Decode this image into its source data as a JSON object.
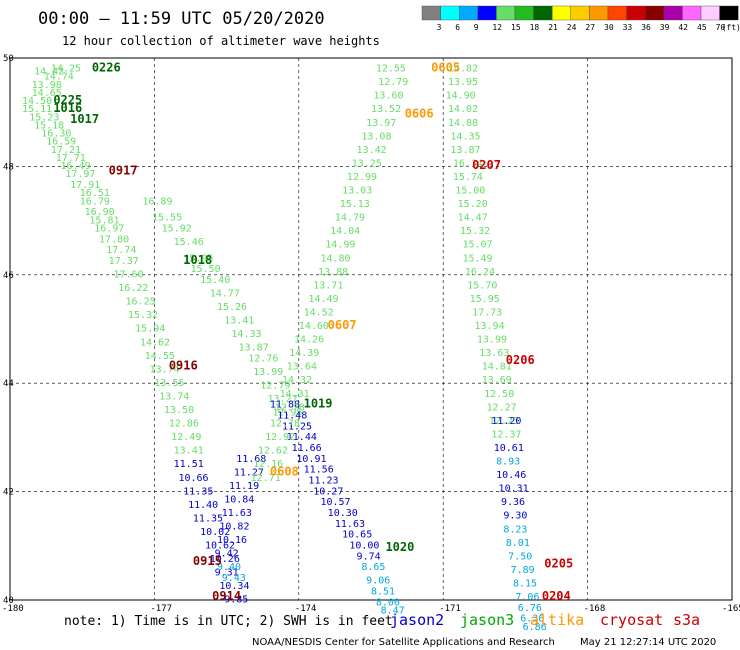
{
  "header": {
    "title": "00:00 – 11:59 UTC 05/20/2020",
    "subtitle": "12 hour collection of altimeter wave heights"
  },
  "legend": {
    "thresholds": [
      "3",
      "6",
      "9",
      "12",
      "15",
      "18",
      "21",
      "24",
      "27",
      "30",
      "33",
      "36",
      "39",
      "42",
      "45",
      "70"
    ],
    "unit": "(ft)",
    "colors": [
      "#808080",
      "#00ffff",
      "#00aaff",
      "#0000ff",
      "#66dd66",
      "#22bb22",
      "#006600",
      "#ffff00",
      "#ffcc00",
      "#ff9900",
      "#ff4400",
      "#cc0000",
      "#880000",
      "#aa00aa",
      "#ff66ff",
      "#ffccff",
      "#000000"
    ]
  },
  "footer": {
    "note": "note: 1) Time is in UTC; 2) SWH is in feet",
    "satellites": [
      {
        "name": "jason2",
        "color": "#0000cc"
      },
      {
        "name": "jason3",
        "color": "#00aa00"
      },
      {
        "name": "altika",
        "color": "#ff9900"
      },
      {
        "name": "cryosat",
        "color": "#cc0000"
      },
      {
        "name": "s3a",
        "color": "#cc0000"
      }
    ],
    "credit": "NOAA/NESDIS Center for Satellite Applications and Research",
    "timestamp": "May 21 12:27:14 UTC 2020"
  },
  "chart_data": {
    "type": "scatter",
    "xlim": [
      -180,
      -165
    ],
    "ylim": [
      40,
      50
    ],
    "xticks": [
      -180,
      -177,
      -174,
      -171,
      -168,
      -165
    ],
    "yticks": [
      40,
      42,
      44,
      46,
      48,
      50
    ],
    "xtick_labels": [
      "-180",
      "-177",
      "-174",
      "-171",
      "-168",
      "-165"
    ],
    "ytick_labels": [
      "40",
      "42",
      "44",
      "46",
      "48",
      "50"
    ],
    "grid": true,
    "time_labels": [
      {
        "text": "0226",
        "lon": -178.3,
        "lat": 49.75,
        "color": "#006600"
      },
      {
        "text": "0225",
        "lon": -179.1,
        "lat": 49.15,
        "color": "#006600"
      },
      {
        "text": "1016",
        "lon": -179.1,
        "lat": 49.0,
        "color": "#006600"
      },
      {
        "text": "1017",
        "lon": -178.75,
        "lat": 48.8,
        "color": "#006600"
      },
      {
        "text": "0917",
        "lon": -177.95,
        "lat": 47.85,
        "color": "#880000"
      },
      {
        "text": "1018",
        "lon": -176.4,
        "lat": 46.2,
        "color": "#006600"
      },
      {
        "text": "0916",
        "lon": -176.7,
        "lat": 44.25,
        "color": "#880000"
      },
      {
        "text": "1019",
        "lon": -173.9,
        "lat": 43.55,
        "color": "#006600"
      },
      {
        "text": "0608",
        "lon": -174.6,
        "lat": 42.3,
        "color": "#ff9900"
      },
      {
        "text": "0915",
        "lon": -176.2,
        "lat": 40.65,
        "color": "#880000"
      },
      {
        "text": "0914",
        "lon": -175.8,
        "lat": 40.0,
        "color": "#880000"
      },
      {
        "text": "1020",
        "lon": -172.2,
        "lat": 40.9,
        "color": "#006600"
      },
      {
        "text": "0605",
        "lon": -171.25,
        "lat": 49.75,
        "color": "#ff9900"
      },
      {
        "text": "0606",
        "lon": -171.8,
        "lat": 48.9,
        "color": "#ff9900"
      },
      {
        "text": "0207",
        "lon": -170.4,
        "lat": 47.95,
        "color": "#cc0000"
      },
      {
        "text": "0607",
        "lon": -173.4,
        "lat": 45.0,
        "color": "#ff9900"
      },
      {
        "text": "0206",
        "lon": -169.7,
        "lat": 44.35,
        "color": "#cc0000"
      },
      {
        "text": "0205",
        "lon": -168.9,
        "lat": 40.6,
        "color": "#cc0000"
      },
      {
        "text": "0204",
        "lon": -168.95,
        "lat": 40.0,
        "color": "#cc0000"
      }
    ],
    "series": [
      {
        "color": "#66dd66",
        "points": [
          [
            -179.15,
            49.75,
            "14.25"
          ],
          [
            -179.5,
            49.7,
            "14.42"
          ],
          [
            -179.3,
            49.6,
            "14.74"
          ],
          [
            -179.55,
            49.45,
            "13.98"
          ],
          [
            -179.55,
            49.3,
            "14.65"
          ],
          [
            -179.75,
            49.15,
            "14.50"
          ],
          [
            -179.75,
            49.0,
            "15.11"
          ],
          [
            -179.6,
            48.85,
            "15.23"
          ],
          [
            -179.5,
            48.7,
            "15.18"
          ],
          [
            -179.35,
            48.55,
            "16.30"
          ],
          [
            -179.25,
            48.4,
            "16.59"
          ],
          [
            -179.15,
            48.25,
            "17.21"
          ],
          [
            -179.05,
            48.1,
            "17.71"
          ],
          [
            -178.95,
            47.95,
            "16.49"
          ],
          [
            -178.85,
            47.8,
            "17.97"
          ],
          [
            -178.75,
            47.6,
            "17.91"
          ],
          [
            -178.55,
            47.45,
            "16.51"
          ],
          [
            -178.55,
            47.3,
            "16.79"
          ],
          [
            -178.45,
            47.1,
            "16.90"
          ],
          [
            -178.35,
            46.95,
            "15.81"
          ],
          [
            -178.25,
            46.8,
            "16.97"
          ],
          [
            -178.15,
            46.6,
            "17.80"
          ],
          [
            -178.0,
            46.4,
            "17.74"
          ],
          [
            -177.95,
            46.2,
            "17.37"
          ],
          [
            -177.85,
            45.95,
            "17.60"
          ],
          [
            -177.75,
            45.7,
            "16.22"
          ],
          [
            -177.6,
            45.45,
            "16.25"
          ],
          [
            -177.55,
            45.2,
            "15.32"
          ],
          [
            -177.4,
            44.95,
            "15.94"
          ],
          [
            -177.3,
            44.7,
            "14.62"
          ],
          [
            -177.2,
            44.45,
            "14.55"
          ],
          [
            -177.1,
            44.2,
            "13.74"
          ],
          [
            -177.0,
            43.95,
            "13.55"
          ],
          [
            -176.9,
            43.7,
            "13.74"
          ],
          [
            -176.8,
            43.45,
            "13.50"
          ],
          [
            -176.7,
            43.2,
            "12.86"
          ],
          [
            -176.65,
            42.95,
            "12.49"
          ],
          [
            -176.6,
            42.7,
            "13.41"
          ]
        ]
      },
      {
        "color": "#66dd66",
        "points": [
          [
            -177.25,
            47.3,
            "16.89"
          ],
          [
            -177.05,
            47.0,
            "15.55"
          ],
          [
            -176.85,
            46.8,
            "15.92"
          ],
          [
            -176.6,
            46.55,
            "15.46"
          ],
          [
            -176.4,
            46.25,
            "15.95"
          ],
          [
            -176.25,
            46.05,
            "15.50"
          ],
          [
            -176.05,
            45.85,
            "15.40"
          ],
          [
            -175.85,
            45.6,
            "14.77"
          ],
          [
            -175.7,
            45.35,
            "15.26"
          ],
          [
            -175.55,
            45.1,
            "13.41"
          ],
          [
            -175.4,
            44.85,
            "14.33"
          ],
          [
            -175.25,
            44.6,
            "13.87"
          ],
          [
            -175.05,
            44.4,
            "12.76"
          ],
          [
            -174.95,
            44.15,
            "13.99"
          ],
          [
            -174.8,
            43.9,
            "12.79"
          ],
          [
            -174.65,
            43.65,
            "13.27"
          ],
          [
            -174.55,
            43.4,
            "12.95"
          ]
        ]
      },
      {
        "color": "#0000cc",
        "points": [
          [
            -176.6,
            42.45,
            "11.51"
          ],
          [
            -176.5,
            42.2,
            "10.66"
          ],
          [
            -176.4,
            41.95,
            "11.35"
          ],
          [
            -176.3,
            41.7,
            "11.40"
          ],
          [
            -176.2,
            41.45,
            "11.35"
          ],
          [
            -176.05,
            41.2,
            "10.02"
          ],
          [
            -175.95,
            40.95,
            "10.62"
          ],
          [
            -175.85,
            40.7,
            "10.26"
          ],
          [
            -175.75,
            40.45,
            "9.31"
          ],
          [
            -175.65,
            40.2,
            "10.34"
          ],
          [
            -175.55,
            39.95,
            "9.85"
          ]
        ]
      },
      {
        "color": "#0000cc",
        "points": [
          [
            -174.6,
            43.55,
            "11.88"
          ],
          [
            -174.45,
            43.35,
            "11.48"
          ],
          [
            -174.35,
            43.15,
            "11.25"
          ],
          [
            -174.25,
            42.95,
            "11.44"
          ],
          [
            -174.15,
            42.75,
            "11.66"
          ],
          [
            -174.05,
            42.55,
            "10.91"
          ],
          [
            -173.9,
            42.35,
            "11.56"
          ],
          [
            -173.8,
            42.15,
            "11.23"
          ],
          [
            -173.7,
            41.95,
            "10.27"
          ],
          [
            -173.55,
            41.75,
            "10.57"
          ],
          [
            -173.4,
            41.55,
            "10.30"
          ],
          [
            -173.25,
            41.35,
            "11.63"
          ],
          [
            -173.1,
            41.15,
            "10.65"
          ],
          [
            -172.95,
            40.95,
            "10.00"
          ],
          [
            -172.8,
            40.75,
            "9.74"
          ]
        ]
      },
      {
        "color": "#0000cc",
        "points": [
          [
            -175.3,
            42.55,
            "11.68"
          ],
          [
            -175.35,
            42.3,
            "11.27"
          ],
          [
            -175.45,
            42.05,
            "11.19"
          ],
          [
            -175.55,
            41.8,
            "10.84"
          ],
          [
            -175.6,
            41.55,
            "11.63"
          ],
          [
            -175.65,
            41.3,
            "10.82"
          ],
          [
            -175.7,
            41.05,
            "10.16"
          ],
          [
            -175.75,
            40.8,
            "9.42"
          ]
        ]
      },
      {
        "color": "#66dd66",
        "points": [
          [
            -174.6,
            43.2,
            "12.78"
          ],
          [
            -174.7,
            42.95,
            "12.92"
          ],
          [
            -174.85,
            42.7,
            "12.62"
          ],
          [
            -174.95,
            42.45,
            "12.16"
          ],
          [
            -175.0,
            42.2,
            "12.71"
          ]
        ]
      },
      {
        "color": "#00aadd",
        "points": [
          [
            -172.7,
            40.55,
            "8.65"
          ],
          [
            -172.6,
            40.3,
            "9.06"
          ],
          [
            -172.5,
            40.1,
            "8.51"
          ],
          [
            -172.4,
            39.9,
            "8.00"
          ],
          [
            -172.3,
            39.75,
            "8.47"
          ],
          [
            -175.7,
            40.55,
            "9.40"
          ],
          [
            -175.6,
            40.35,
            "9.43"
          ]
        ]
      },
      {
        "color": "#66dd66",
        "points": [
          [
            -172.4,
            49.75,
            "12.55"
          ],
          [
            -172.35,
            49.5,
            "12.79"
          ],
          [
            -172.45,
            49.25,
            "13.60"
          ],
          [
            -172.5,
            49.0,
            "13.52"
          ],
          [
            -172.6,
            48.75,
            "13.97"
          ],
          [
            -172.7,
            48.5,
            "13.08"
          ],
          [
            -172.8,
            48.25,
            "13.42"
          ],
          [
            -172.9,
            48.0,
            "13.25"
          ],
          [
            -173.0,
            47.75,
            "12.99"
          ],
          [
            -173.1,
            47.5,
            "13.03"
          ],
          [
            -173.15,
            47.25,
            "15.13"
          ],
          [
            -173.25,
            47.0,
            "14.79"
          ],
          [
            -173.35,
            46.75,
            "14.04"
          ],
          [
            -173.45,
            46.5,
            "14.99"
          ],
          [
            -173.55,
            46.25,
            "14.80"
          ],
          [
            -173.6,
            46.0,
            "13.88"
          ],
          [
            -173.7,
            45.75,
            "13.71"
          ],
          [
            -173.8,
            45.5,
            "14.49"
          ],
          [
            -173.9,
            45.25,
            "14.52"
          ],
          [
            -174.0,
            45.0,
            "14.60"
          ],
          [
            -174.1,
            44.75,
            "14.26"
          ],
          [
            -174.2,
            44.5,
            "14.39"
          ],
          [
            -174.25,
            44.25,
            "13.64"
          ],
          [
            -174.35,
            44.0,
            "14.32"
          ],
          [
            -174.4,
            43.75,
            "14.31"
          ],
          [
            -174.5,
            43.5,
            "12.78"
          ]
        ]
      },
      {
        "color": "#66dd66",
        "points": [
          [
            -170.9,
            49.75,
            "14.82"
          ],
          [
            -170.9,
            49.5,
            "13.95"
          ],
          [
            -170.95,
            49.25,
            "14.90"
          ],
          [
            -170.9,
            49.0,
            "14.02"
          ],
          [
            -170.9,
            48.75,
            "14.88"
          ],
          [
            -170.85,
            48.5,
            "14.35"
          ],
          [
            -170.85,
            48.25,
            "13.87"
          ],
          [
            -170.8,
            48.0,
            "16.14"
          ],
          [
            -170.8,
            47.75,
            "15.74"
          ],
          [
            -170.75,
            47.5,
            "15.00"
          ],
          [
            -170.7,
            47.25,
            "15.20"
          ],
          [
            -170.7,
            47.0,
            "14.47"
          ],
          [
            -170.65,
            46.75,
            "15.32"
          ],
          [
            -170.6,
            46.5,
            "15.07"
          ],
          [
            -170.6,
            46.25,
            "15.49"
          ],
          [
            -170.55,
            46.0,
            "16.24"
          ],
          [
            -170.5,
            45.75,
            "15.70"
          ],
          [
            -170.45,
            45.5,
            "15.95"
          ],
          [
            -170.4,
            45.25,
            "17.73"
          ],
          [
            -170.35,
            45.0,
            "13.94"
          ],
          [
            -170.3,
            44.75,
            "13.99"
          ],
          [
            -170.25,
            44.5,
            "13.63"
          ],
          [
            -170.2,
            44.25,
            "14.81"
          ],
          [
            -170.2,
            44.0,
            "13.69"
          ],
          [
            -170.15,
            43.75,
            "12.50"
          ],
          [
            -170.1,
            43.5,
            "12.27"
          ],
          [
            -170.05,
            43.25,
            "12.23"
          ],
          [
            -170.0,
            43.0,
            "12.37"
          ]
        ]
      },
      {
        "color": "#0000cc",
        "points": [
          [
            -170.0,
            43.25,
            "11.20"
          ],
          [
            -169.95,
            42.75,
            "10.61"
          ],
          [
            -169.9,
            42.25,
            "10.46"
          ],
          [
            -169.85,
            42.0,
            "10.31"
          ],
          [
            -169.8,
            41.75,
            "9.36"
          ],
          [
            -169.75,
            41.5,
            "9.30"
          ]
        ]
      },
      {
        "color": "#00aadd",
        "points": [
          [
            -169.9,
            42.5,
            "8.93"
          ],
          [
            -169.75,
            41.25,
            "8.23"
          ],
          [
            -169.7,
            41.0,
            "8.01"
          ],
          [
            -169.65,
            40.75,
            "7.50"
          ],
          [
            -169.6,
            40.5,
            "7.89"
          ],
          [
            -169.55,
            40.25,
            "8.15"
          ],
          [
            -169.5,
            40.0,
            "7.06"
          ],
          [
            -169.45,
            39.8,
            "6.76"
          ],
          [
            -169.4,
            39.6,
            "6.36"
          ],
          [
            -169.35,
            39.45,
            "6.86"
          ]
        ]
      }
    ]
  }
}
